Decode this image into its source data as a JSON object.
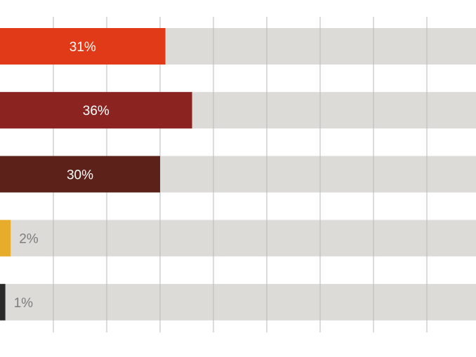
{
  "chart_data": {
    "type": "bar",
    "orientation": "horizontal",
    "title": "",
    "xlabel": "",
    "ylabel": "",
    "xlim": [
      0,
      80
    ],
    "grid": true,
    "legend": "none",
    "values": [
      31,
      36,
      30,
      2,
      1
    ],
    "value_labels": [
      "31%",
      "36%",
      "30%",
      "2%",
      "1%"
    ],
    "colors": [
      "#e13a18",
      "#8b2420",
      "#5c2118",
      "#e8ac2d",
      "#2a2a2a"
    ],
    "track_color": "#dcdbd7",
    "grid_color": "#b9b9b9"
  }
}
